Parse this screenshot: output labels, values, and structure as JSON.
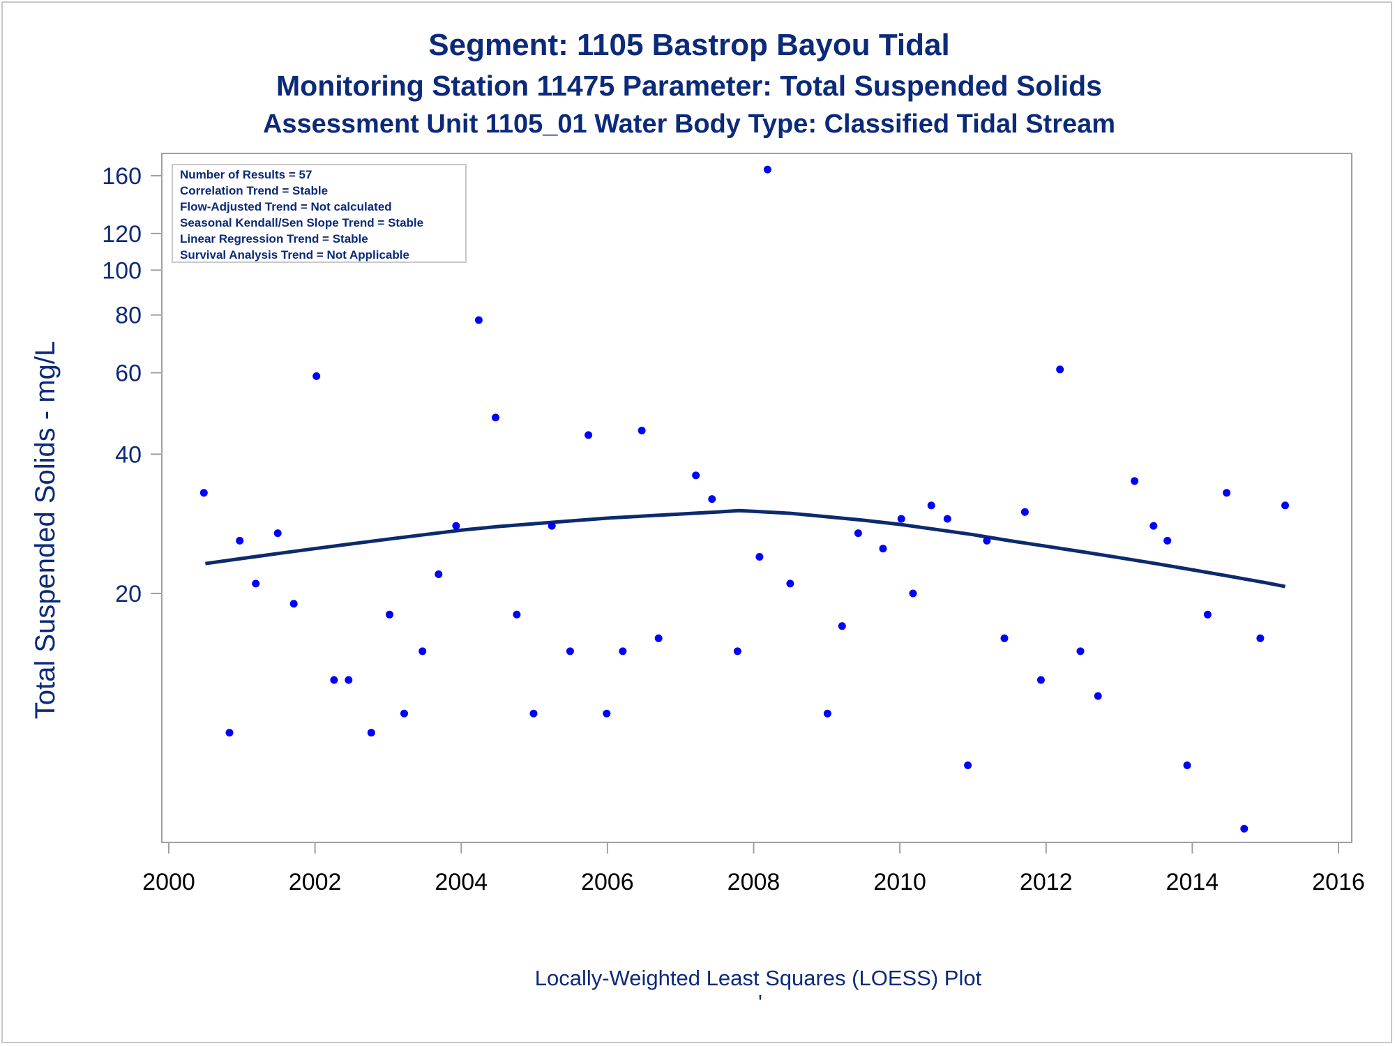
{
  "title": {
    "line1": "Segment: 1105  Bastrop Bayou Tidal",
    "line2": "Monitoring Station 11475 Parameter: Total Suspended Solids",
    "line3": "Assessment Unit 1105_01   Water Body Type: Classified Tidal Stream"
  },
  "stats": [
    "Number of Results = 57",
    "Correlation Trend = Stable",
    "Flow-Adjusted Trend = Not calculated",
    "Seasonal Kendall/Sen Slope Trend = Stable",
    "Linear Regression Trend = Stable",
    "Survival Analysis Trend = Not Applicable"
  ],
  "footnote": "Locally-Weighted Least Squares (LOESS) Plot",
  "footnote2": "'",
  "colors": {
    "points": "#0000ff",
    "line": "#0c2a6e",
    "text": "#0c2a7a",
    "frame": "#a0a0a0"
  },
  "chart_data": {
    "type": "scatter",
    "title": "Segment: 1105  Bastrop Bayou Tidal",
    "ylabel": "Total Suspended Solids - mg/L",
    "xlabel": "",
    "y_scale": "log",
    "xlim": [
      2000,
      2016
    ],
    "ylim": [
      6,
      170
    ],
    "x_ticks": [
      {
        "value": 2000,
        "label": "2000"
      },
      {
        "value": 2002,
        "label": "2002"
      },
      {
        "value": 2004,
        "label": "2004"
      },
      {
        "value": 2006,
        "label": "2006"
      },
      {
        "value": 2008,
        "label": "2008"
      },
      {
        "value": 2010,
        "label": "2010"
      },
      {
        "value": 2012,
        "label": "2012"
      },
      {
        "value": 2014,
        "label": "2014"
      },
      {
        "value": 2016,
        "label": "2016"
      }
    ],
    "y_ticks": [
      {
        "value": 20,
        "label": "20"
      },
      {
        "value": 40,
        "label": "40"
      },
      {
        "value": 60,
        "label": "60"
      },
      {
        "value": 80,
        "label": "80"
      },
      {
        "value": 100,
        "label": "100"
      },
      {
        "value": 120,
        "label": "120"
      },
      {
        "value": 160,
        "label": "160"
      }
    ],
    "legend": "none",
    "series": [
      {
        "type": "scatter",
        "points": [
          {
            "x": 2000.48,
            "y": 33
          },
          {
            "x": 2000.83,
            "y": 10
          },
          {
            "x": 2000.97,
            "y": 26
          },
          {
            "x": 2001.19,
            "y": 21
          },
          {
            "x": 2001.49,
            "y": 27
          },
          {
            "x": 2001.71,
            "y": 19
          },
          {
            "x": 2002.02,
            "y": 59
          },
          {
            "x": 2002.26,
            "y": 13
          },
          {
            "x": 2002.46,
            "y": 13
          },
          {
            "x": 2002.77,
            "y": 10
          },
          {
            "x": 2003.02,
            "y": 18
          },
          {
            "x": 2003.22,
            "y": 11
          },
          {
            "x": 2003.47,
            "y": 15
          },
          {
            "x": 2003.69,
            "y": 22
          },
          {
            "x": 2003.93,
            "y": 28
          },
          {
            "x": 2004.24,
            "y": 78
          },
          {
            "x": 2004.47,
            "y": 48
          },
          {
            "x": 2004.76,
            "y": 18
          },
          {
            "x": 2004.99,
            "y": 11
          },
          {
            "x": 2005.24,
            "y": 28
          },
          {
            "x": 2005.49,
            "y": 15
          },
          {
            "x": 2005.74,
            "y": 44
          },
          {
            "x": 2005.99,
            "y": 11
          },
          {
            "x": 2006.21,
            "y": 15
          },
          {
            "x": 2006.47,
            "y": 45
          },
          {
            "x": 2006.7,
            "y": 16
          },
          {
            "x": 2007.21,
            "y": 36
          },
          {
            "x": 2007.43,
            "y": 32
          },
          {
            "x": 2007.78,
            "y": 15
          },
          {
            "x": 2008.08,
            "y": 24
          },
          {
            "x": 2008.19,
            "y": 165
          },
          {
            "x": 2008.5,
            "y": 21
          },
          {
            "x": 2009.01,
            "y": 11
          },
          {
            "x": 2009.21,
            "y": 17
          },
          {
            "x": 2009.43,
            "y": 27
          },
          {
            "x": 2009.77,
            "y": 25
          },
          {
            "x": 2010.02,
            "y": 29
          },
          {
            "x": 2010.18,
            "y": 20
          },
          {
            "x": 2010.43,
            "y": 31
          },
          {
            "x": 2010.65,
            "y": 29
          },
          {
            "x": 2010.93,
            "y": 8.5
          },
          {
            "x": 2011.19,
            "y": 26
          },
          {
            "x": 2011.43,
            "y": 16
          },
          {
            "x": 2011.71,
            "y": 30
          },
          {
            "x": 2011.93,
            "y": 13
          },
          {
            "x": 2012.19,
            "y": 61
          },
          {
            "x": 2012.47,
            "y": 15
          },
          {
            "x": 2012.71,
            "y": 12
          },
          {
            "x": 2013.21,
            "y": 35
          },
          {
            "x": 2013.47,
            "y": 28
          },
          {
            "x": 2013.66,
            "y": 26
          },
          {
            "x": 2013.93,
            "y": 8.5
          },
          {
            "x": 2014.21,
            "y": 18
          },
          {
            "x": 2014.47,
            "y": 33
          },
          {
            "x": 2014.71,
            "y": 6.2
          },
          {
            "x": 2014.93,
            "y": 16
          },
          {
            "x": 2015.27,
            "y": 31
          }
        ]
      },
      {
        "type": "line",
        "points": [
          {
            "x": 2000.5,
            "y": 23.2
          },
          {
            "x": 2001.0,
            "y": 23.8
          },
          {
            "x": 2001.5,
            "y": 24.4
          },
          {
            "x": 2002.0,
            "y": 25.0
          },
          {
            "x": 2002.5,
            "y": 25.6
          },
          {
            "x": 2003.0,
            "y": 26.2
          },
          {
            "x": 2003.5,
            "y": 26.8
          },
          {
            "x": 2004.0,
            "y": 27.4
          },
          {
            "x": 2004.5,
            "y": 27.9
          },
          {
            "x": 2005.0,
            "y": 28.3
          },
          {
            "x": 2005.5,
            "y": 28.7
          },
          {
            "x": 2006.0,
            "y": 29.1
          },
          {
            "x": 2006.5,
            "y": 29.4
          },
          {
            "x": 2007.0,
            "y": 29.7
          },
          {
            "x": 2007.5,
            "y": 30.0
          },
          {
            "x": 2007.8,
            "y": 30.2
          },
          {
            "x": 2008.0,
            "y": 30.1
          },
          {
            "x": 2008.5,
            "y": 29.8
          },
          {
            "x": 2009.0,
            "y": 29.3
          },
          {
            "x": 2009.5,
            "y": 28.8
          },
          {
            "x": 2010.0,
            "y": 28.2
          },
          {
            "x": 2010.5,
            "y": 27.5
          },
          {
            "x": 2011.0,
            "y": 26.8
          },
          {
            "x": 2011.5,
            "y": 26.0
          },
          {
            "x": 2012.0,
            "y": 25.3
          },
          {
            "x": 2012.5,
            "y": 24.6
          },
          {
            "x": 2013.0,
            "y": 23.9
          },
          {
            "x": 2013.5,
            "y": 23.2
          },
          {
            "x": 2014.0,
            "y": 22.5
          },
          {
            "x": 2014.5,
            "y": 21.8
          },
          {
            "x": 2015.0,
            "y": 21.1
          },
          {
            "x": 2015.27,
            "y": 20.7
          }
        ]
      }
    ]
  }
}
